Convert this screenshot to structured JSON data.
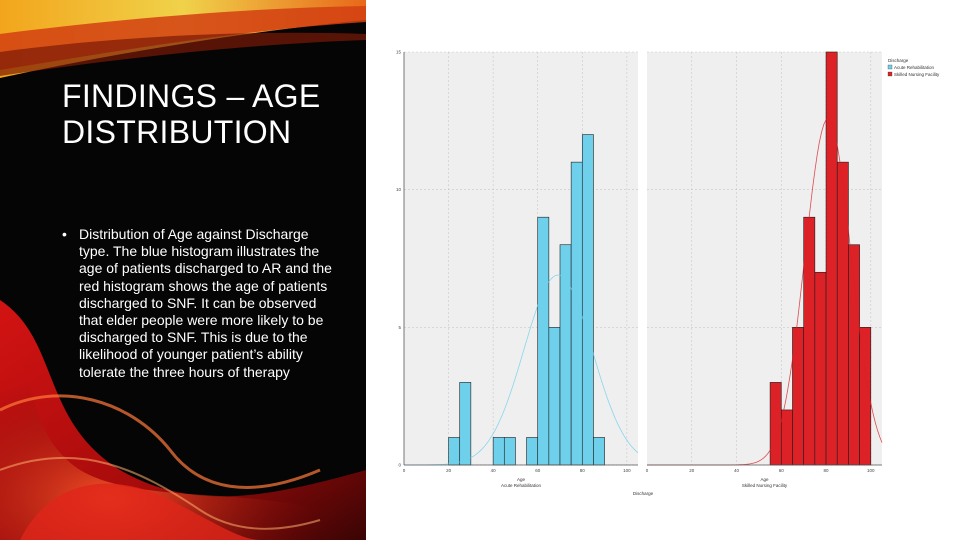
{
  "slide": {
    "title": "FINDINGS – AGE DISTRIBUTION",
    "bullet_marker": "•",
    "bullet_text": "Distribution of Age against Discharge type. The blue histogram illustrates the age of patients discharged to AR and the red histogram shows the age of patients discharged to SNF. It can be observed that elder people were more likely to be discharged to SNF. This is due to the likelihood of younger patient’s ability tolerate the three hours of therapy"
  },
  "colors": {
    "ar": "#6fd0ec",
    "snf": "#dc2127",
    "plot_bg": "#efefef",
    "grid": "#c8c8c8",
    "bar_edge": "#1e1e1e"
  },
  "chart_data": [
    {
      "type": "bar",
      "panel": "Acute Rehabilitation",
      "xlabel": "Age",
      "xlim": [
        0,
        105
      ],
      "ylim": [
        0,
        15
      ],
      "bins": [
        [
          20,
          25
        ],
        [
          25,
          30
        ],
        [
          35,
          40
        ],
        [
          40,
          45
        ],
        [
          45,
          50
        ],
        [
          50,
          55
        ],
        [
          55,
          60
        ],
        [
          60,
          65
        ],
        [
          65,
          70
        ],
        [
          70,
          75
        ],
        [
          75,
          80
        ],
        [
          80,
          85
        ],
        [
          85,
          90
        ]
      ],
      "values": [
        1,
        3,
        0,
        1,
        1,
        0,
        1,
        9,
        5,
        8,
        11,
        12,
        1
      ],
      "series": [
        {
          "name": "Acute Rehabilitation",
          "color_key": "ar"
        }
      ]
    },
    {
      "type": "bar",
      "panel": "Skilled Nursing Facility",
      "xlabel": "Age",
      "xlim": [
        0,
        105
      ],
      "ylim": [
        0,
        15
      ],
      "bins": [
        [
          55,
          60
        ],
        [
          60,
          65
        ],
        [
          65,
          70
        ],
        [
          70,
          75
        ],
        [
          75,
          80
        ],
        [
          80,
          85
        ],
        [
          85,
          90
        ],
        [
          90,
          95
        ],
        [
          95,
          100
        ]
      ],
      "values": [
        3,
        2,
        5,
        9,
        7,
        15,
        11,
        8,
        5
      ],
      "series": [
        {
          "name": "Skilled Nursing Facility",
          "color_key": "snf"
        }
      ]
    }
  ],
  "chart_meta": {
    "legend_title": "Discharge",
    "legend_entries": [
      "Acute Rehabilitation",
      "Skilled Nursing Facility"
    ],
    "legend_position": "top-right",
    "y_ticks": [
      "15",
      "10",
      "5",
      "0"
    ],
    "x_ticks": [
      "0",
      "20",
      "40",
      "60",
      "80",
      "100"
    ],
    "shared_xlabel": "Discharge",
    "grid": true
  }
}
